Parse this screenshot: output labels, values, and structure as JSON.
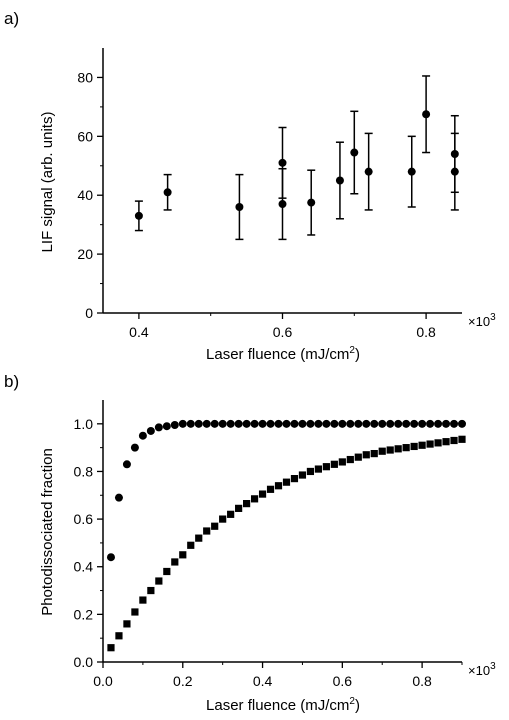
{
  "chart_data": [
    {
      "panel_label": "a)",
      "type": "scatter",
      "xlabel": "Laser fluence (mJ/cm",
      "xlabel_sup": "2",
      "xlabel_tail": ")",
      "ylabel": "LIF signal (arb. units)",
      "x_multiplier": "×10",
      "x_multiplier_sup": "3",
      "xlim": [
        0.35,
        0.85
      ],
      "ylim": [
        0,
        90
      ],
      "x_ticks": [
        0.4,
        0.6,
        0.8
      ],
      "x_tick_labels": [
        "0.4",
        "0.6",
        "0.8"
      ],
      "y_ticks": [
        0,
        20,
        40,
        60,
        80
      ],
      "y_tick_labels": [
        "0",
        "20",
        "40",
        "60",
        "80"
      ],
      "marker": "circle",
      "color": "#000000",
      "series": [
        {
          "points": [
            {
              "x": 0.4,
              "y": 33,
              "err": 5
            },
            {
              "x": 0.44,
              "y": 41,
              "err": 6
            },
            {
              "x": 0.54,
              "y": 36,
              "err": 11
            },
            {
              "x": 0.6,
              "y": 51,
              "err": 12
            },
            {
              "x": 0.6,
              "y": 37,
              "err": 12
            },
            {
              "x": 0.64,
              "y": 37.5,
              "err": 11
            },
            {
              "x": 0.68,
              "y": 45,
              "err": 13
            },
            {
              "x": 0.7,
              "y": 54.5,
              "err": 14
            },
            {
              "x": 0.72,
              "y": 48,
              "err": 13
            },
            {
              "x": 0.78,
              "y": 48,
              "err": 12
            },
            {
              "x": 0.8,
              "y": 67.5,
              "err": 13
            },
            {
              "x": 0.84,
              "y": 54,
              "err": 13
            },
            {
              "x": 0.84,
              "y": 48,
              "err": 13
            }
          ]
        }
      ]
    },
    {
      "panel_label": "b)",
      "type": "scatter",
      "xlabel": "Laser fluence (mJ/cm",
      "xlabel_sup": "2",
      "xlabel_tail": ")",
      "ylabel": "Photodissociated fraction",
      "x_multiplier": "×10",
      "x_multiplier_sup": "3",
      "xlim": [
        0,
        0.9
      ],
      "ylim": [
        0,
        1.1
      ],
      "x_ticks": [
        0.0,
        0.2,
        0.4,
        0.6,
        0.8
      ],
      "x_tick_labels": [
        "0.0",
        "0.2",
        "0.4",
        "0.6",
        "0.8"
      ],
      "y_ticks": [
        0.0,
        0.2,
        0.4,
        0.6,
        0.8,
        1.0
      ],
      "y_tick_labels": [
        "0.0",
        "0.2",
        "0.4",
        "0.6",
        "0.8",
        "1.0"
      ],
      "color": "#000000",
      "series": [
        {
          "marker": "circle",
          "x": [
            0.02,
            0.04,
            0.06,
            0.08,
            0.1,
            0.12,
            0.14,
            0.16,
            0.18,
            0.2,
            0.22,
            0.24,
            0.26,
            0.28,
            0.3,
            0.32,
            0.34,
            0.36,
            0.38,
            0.4,
            0.42,
            0.44,
            0.46,
            0.48,
            0.5,
            0.52,
            0.54,
            0.56,
            0.58,
            0.6,
            0.62,
            0.64,
            0.66,
            0.68,
            0.7,
            0.72,
            0.74,
            0.76,
            0.78,
            0.8,
            0.82,
            0.84,
            0.86,
            0.88,
            0.9
          ],
          "y": [
            0.44,
            0.69,
            0.83,
            0.9,
            0.95,
            0.97,
            0.985,
            0.99,
            0.995,
            1.0,
            1.0,
            1.0,
            1.0,
            1.0,
            1.0,
            1.0,
            1.0,
            1.0,
            1.0,
            1.0,
            1.0,
            1.0,
            1.0,
            1.0,
            1.0,
            1.0,
            1.0,
            1.0,
            1.0,
            1.0,
            1.0,
            1.0,
            1.0,
            1.0,
            1.0,
            1.0,
            1.0,
            1.0,
            1.0,
            1.0,
            1.0,
            1.0,
            1.0,
            1.0,
            1.0
          ]
        },
        {
          "marker": "square",
          "x": [
            0.02,
            0.04,
            0.06,
            0.08,
            0.1,
            0.12,
            0.14,
            0.16,
            0.18,
            0.2,
            0.22,
            0.24,
            0.26,
            0.28,
            0.3,
            0.32,
            0.34,
            0.36,
            0.38,
            0.4,
            0.42,
            0.44,
            0.46,
            0.48,
            0.5,
            0.52,
            0.54,
            0.56,
            0.58,
            0.6,
            0.62,
            0.64,
            0.66,
            0.68,
            0.7,
            0.72,
            0.74,
            0.76,
            0.78,
            0.8,
            0.82,
            0.84,
            0.86,
            0.88,
            0.9
          ],
          "y": [
            0.06,
            0.11,
            0.16,
            0.21,
            0.26,
            0.3,
            0.34,
            0.38,
            0.42,
            0.45,
            0.49,
            0.52,
            0.55,
            0.57,
            0.6,
            0.62,
            0.645,
            0.665,
            0.685,
            0.705,
            0.725,
            0.74,
            0.755,
            0.77,
            0.785,
            0.8,
            0.81,
            0.82,
            0.83,
            0.84,
            0.85,
            0.86,
            0.87,
            0.875,
            0.885,
            0.89,
            0.895,
            0.9,
            0.905,
            0.91,
            0.915,
            0.92,
            0.925,
            0.93,
            0.935
          ]
        }
      ]
    }
  ]
}
